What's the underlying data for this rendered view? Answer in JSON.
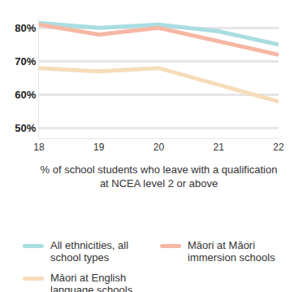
{
  "chart_data": {
    "type": "line",
    "xlabel": "% of school students who leave with a qualification at NCEA level 2 or above",
    "x": [
      18,
      19,
      20,
      21,
      22
    ],
    "xlim": [
      18,
      22
    ],
    "xticks": [
      18,
      19,
      20,
      21,
      22
    ],
    "ylim": [
      47,
      83
    ],
    "yticks": [
      {
        "value": 50,
        "label": "50%"
      },
      {
        "value": 60,
        "label": "60%"
      },
      {
        "value": 70,
        "label": "70%"
      },
      {
        "value": 80,
        "label": "80%"
      }
    ],
    "grid": true,
    "legend": "bottom",
    "series": [
      {
        "name": "All ethnicities, all school types",
        "color": "#a9dde1",
        "values": [
          81.5,
          80,
          81,
          79,
          75
        ]
      },
      {
        "name": "Māori at Māori immersion schools",
        "color": "#f5b7a4",
        "values": [
          81,
          78,
          80,
          76,
          72
        ]
      },
      {
        "name": "Māori at English language schools",
        "color": "#f6dcb9",
        "values": [
          68,
          67,
          68,
          63,
          58
        ]
      }
    ]
  }
}
